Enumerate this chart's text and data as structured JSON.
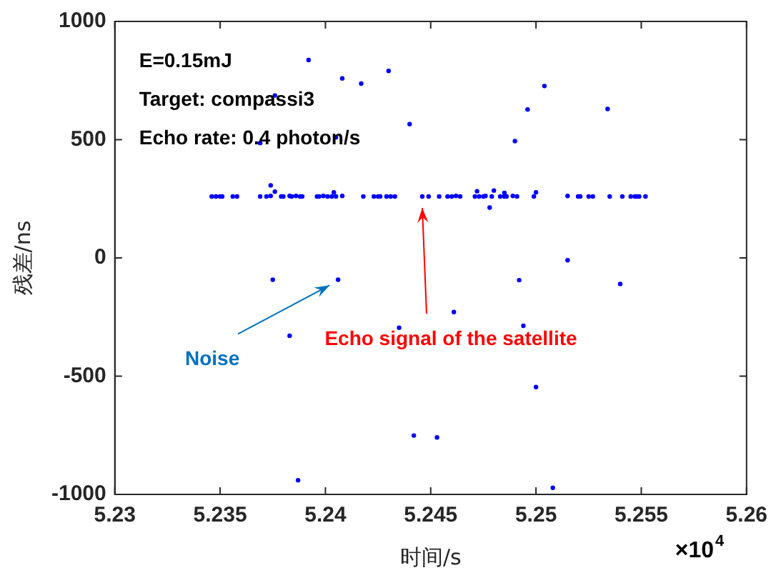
{
  "chart_data": {
    "type": "scatter",
    "xlabel": "时间/s",
    "ylabel": "残差/ns",
    "annotations": [
      "E=0.15mJ",
      "Target: compassi3",
      "Echo rate: 0.4 photon/s",
      {
        "text": "Noise",
        "x": 5.2406,
        "y": -92
      },
      {
        "text": "Echo signal of the satellite",
        "x": 5.2446,
        "y": 260
      },
      "×10$^{4}$"
    ],
    "series": [
      {
        "color": "#0000ff",
        "x": [
          5.2392,
          5.2408,
          5.2417,
          5.243,
          5.244,
          5.2369,
          5.2405,
          5.2376,
          5.2375,
          5.2406,
          5.2383,
          5.2435,
          5.2442,
          5.2453,
          5.2387,
          5.2461,
          5.2492,
          5.2515,
          5.254,
          5.2494,
          5.25,
          5.2508,
          5.2504,
          5.2496,
          5.2534,
          5.249,
          5.2478,
          5.2374,
          5.2404,
          5.2376,
          5.2472,
          5.2485,
          5.25,
          5.248,
          5.2346,
          5.2348,
          5.235,
          5.2351,
          5.2356,
          5.2358,
          5.2369,
          5.2372,
          5.2374,
          5.2379,
          5.238,
          5.2383,
          5.2384,
          5.2386,
          5.2388,
          5.2389,
          5.2396,
          5.2397,
          5.2399,
          5.2401,
          5.2403,
          5.2405,
          5.2408,
          5.2418,
          5.2423,
          5.2425,
          5.2426,
          5.2429,
          5.2431,
          5.2433,
          5.2446,
          5.2449,
          5.2454,
          5.2458,
          5.246,
          5.2462,
          5.2464,
          5.2471,
          5.2473,
          5.2475,
          5.2476,
          5.2479,
          5.2483,
          5.2485,
          5.2486,
          5.2489,
          5.2491,
          5.2499,
          5.2515,
          5.252,
          5.2521,
          5.2525,
          5.2527,
          5.2535,
          5.2541,
          5.2545,
          5.2547,
          5.2548,
          5.2549,
          5.2552
        ],
        "values": [
          837,
          759,
          737,
          791,
          566,
          486,
          510,
          687,
          -92,
          -92,
          -329,
          -295,
          -751,
          -759,
          -940,
          -229,
          -94,
          -10,
          -110,
          -287,
          -546,
          -972,
          727,
          628,
          630,
          494,
          213,
          307,
          277,
          280,
          282,
          275,
          277,
          285,
          260,
          260,
          260,
          260,
          260,
          260,
          260,
          260,
          262,
          260,
          260,
          262,
          260,
          262,
          260,
          260,
          260,
          260,
          262,
          260,
          260,
          260,
          262,
          260,
          260,
          260,
          260,
          260,
          260,
          260,
          260,
          260,
          260,
          260,
          260,
          262,
          260,
          260,
          260,
          260,
          262,
          260,
          260,
          260,
          260,
          262,
          260,
          260,
          262,
          260,
          260,
          260,
          260,
          260,
          260,
          260,
          260,
          260,
          260,
          260
        ]
      }
    ],
    "marker": "circle",
    "grid": false,
    "legend": false,
    "xlim": [
      5.23,
      5.26
    ],
    "xticks": [
      5.23,
      5.235,
      5.24,
      5.245,
      5.25,
      5.255,
      5.26
    ],
    "ylim": [
      -1000,
      1000
    ],
    "yticks": [
      -1000,
      -500,
      0,
      500,
      1000
    ]
  }
}
